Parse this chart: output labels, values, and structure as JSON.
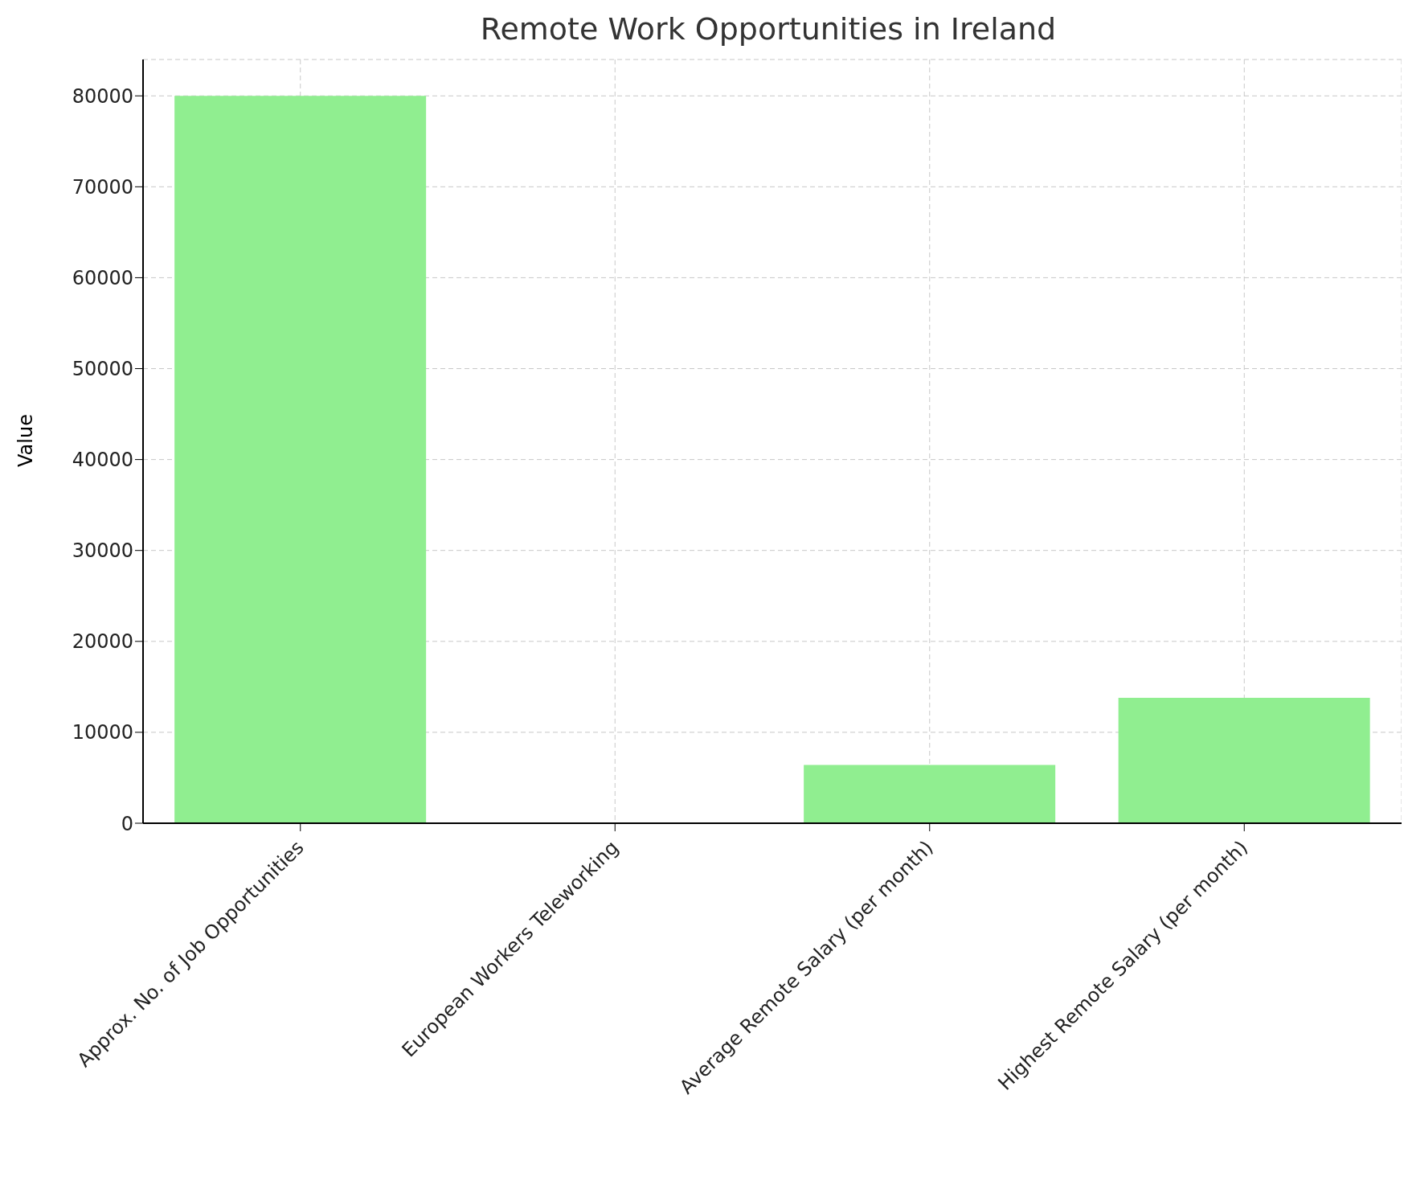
{
  "chart_data": {
    "type": "bar",
    "title": "Remote Work Opportunities in Ireland",
    "ylabel": "Value",
    "categories": [
      "Approx. No. of Job Opportunities",
      "European Workers Teleworking",
      "Average Remote Salary (per month)",
      "Highest Remote Salary (per month)"
    ],
    "values": [
      80000,
      0,
      6400,
      13800
    ],
    "color": "#90ee90",
    "ylim": [
      0,
      84000
    ],
    "yticks": [
      0,
      10000,
      20000,
      30000,
      40000,
      50000,
      60000,
      70000,
      80000
    ],
    "grid": true
  }
}
